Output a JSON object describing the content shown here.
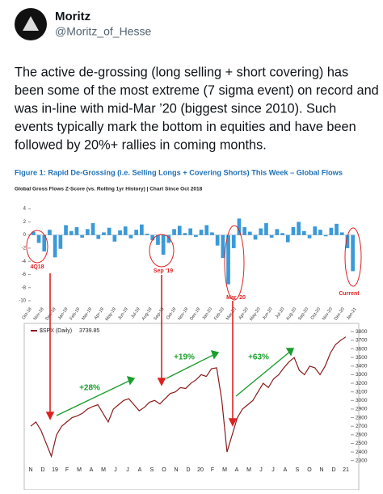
{
  "tweet": {
    "name": "Moritz",
    "handle": "@Moritz_of_Hesse",
    "text_lines": [
      "The active de-grossing (long selling + short covering) has",
      "been some of the most extreme (7 sigma event) on record and",
      "was in-line with mid-Mar ’20 (biggest since 2010). Such",
      "events typically mark the bottom in equities and have been",
      "followed by 20%+ rallies in coming months."
    ]
  },
  "figure_title": "Figure 1: Rapid De-Grossing (i.e. Selling Longs + Covering Shorts) This Week – Global Flows",
  "chart_data": [
    {
      "type": "bar",
      "subtitle": "Global Gross Flows Z-Score (vs. Rolling 1yr History) | Chart Since Oct 2018",
      "color": "#3a9ad9",
      "values": [
        0.5,
        -1.2,
        -2.5,
        0.8,
        -3.4,
        -2.1,
        1.5,
        0.6,
        1.2,
        -0.4,
        0.9,
        1.8,
        -0.6,
        0.4,
        1.1,
        -1.0,
        0.7,
        1.3,
        -0.5,
        0.8,
        1.6,
        0.2,
        -0.8,
        -1.5,
        -3.0,
        -1.2,
        0.9,
        1.4,
        0.3,
        1.0,
        -0.3,
        0.8,
        1.5,
        0.4,
        -1.6,
        -3.5,
        -7.5,
        -2.0,
        2.5,
        1.2,
        0.5,
        -0.7,
        1.0,
        1.8,
        -0.4,
        0.9,
        0.3,
        -1.1,
        1.2,
        2.0,
        0.6,
        -0.5,
        1.3,
        0.8,
        -0.2,
        1.1,
        1.7,
        0.4,
        -2.0,
        -5.5
      ],
      "ylim": [
        -10,
        5
      ],
      "yticks": [
        4,
        2,
        0,
        -2,
        -4,
        -6,
        -8,
        -10
      ],
      "x_tick_labels": [
        "Oct-18",
        "Nov-18",
        "Dec-18",
        "Jan-19",
        "Feb-19",
        "Mar-19",
        "Apr-19",
        "May-19",
        "Jun-19",
        "Jul-19",
        "Aug-19",
        "Sep-19",
        "Oct-19",
        "Nov-19",
        "Dec-19",
        "Jan-20",
        "Feb-20",
        "Mar-20",
        "Apr-20",
        "May-20",
        "Jun-20",
        "Jul-20",
        "Aug-20",
        "Sep-20",
        "Oct-20",
        "Nov-20",
        "Dec-20",
        "Jan-21"
      ],
      "annotations": [
        "4Q18",
        "Sep '19",
        "Mar '20",
        "Current"
      ]
    },
    {
      "type": "line",
      "series": [
        {
          "name": "$SPX (Daily)",
          "color": "#8b1a1a",
          "values": [
            2700,
            2750,
            2650,
            2500,
            2350,
            2600,
            2700,
            2750,
            2800,
            2820,
            2850,
            2900,
            2930,
            2950,
            2850,
            2750,
            2900,
            2950,
            3000,
            3020,
            2950,
            2880,
            2920,
            2980,
            3000,
            2960,
            3020,
            3080,
            3100,
            3150,
            3140,
            3200,
            3240,
            3300,
            3280,
            3370,
            3380,
            3000,
            2400,
            2600,
            2800,
            2900,
            2950,
            3000,
            3100,
            3200,
            3150,
            3250,
            3300,
            3380,
            3450,
            3500,
            3350,
            3300,
            3400,
            3380,
            3300,
            3400,
            3550,
            3650,
            3700,
            3740
          ]
        }
      ],
      "last_value": 3739.85,
      "ylim": [
        2250,
        3850
      ],
      "yticks": [
        2300,
        2400,
        2500,
        2600,
        2700,
        2800,
        2900,
        3000,
        3100,
        3200,
        3300,
        3400,
        3500,
        3600,
        3700,
        3800
      ],
      "x_tick_labels": [
        "N",
        "D",
        "19",
        "F",
        "M",
        "A",
        "M",
        "J",
        "J",
        "A",
        "S",
        "O",
        "N",
        "D",
        "20",
        "F",
        "M",
        "A",
        "M",
        "J",
        "J",
        "A",
        "S",
        "O",
        "N",
        "D",
        "21"
      ],
      "annotations": [
        "+28%",
        "+19%",
        "+63%"
      ]
    }
  ]
}
